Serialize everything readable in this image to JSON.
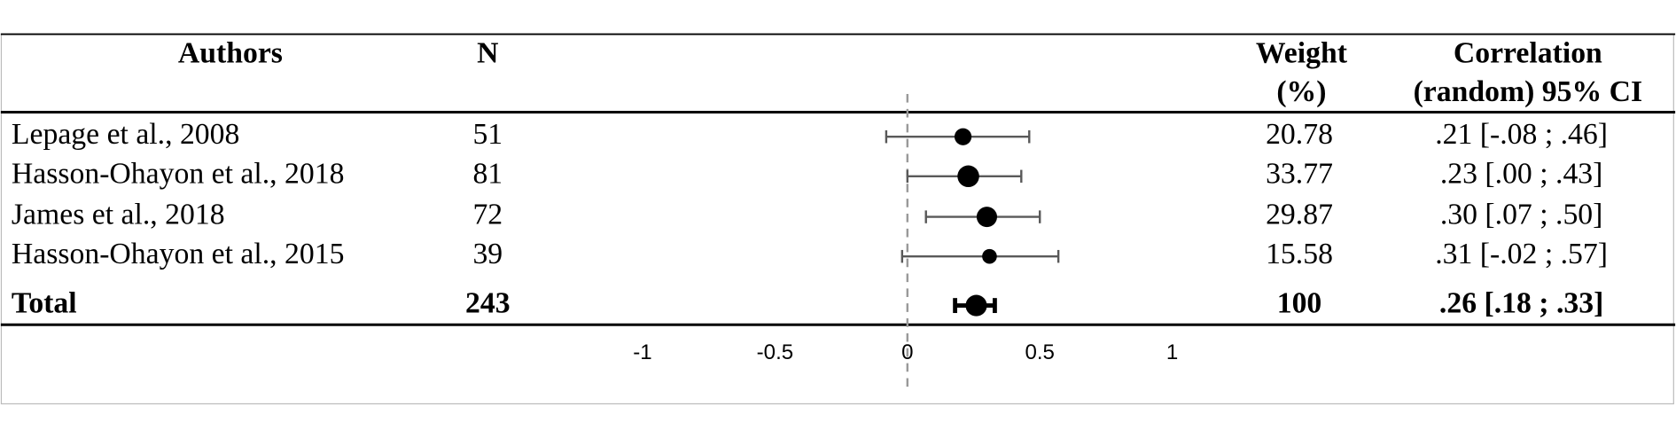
{
  "chart_data": {
    "type": "forest",
    "headers": {
      "authors": "Authors",
      "n": "N",
      "weight": [
        "Weight",
        "(%)"
      ],
      "ci": [
        "Correlation",
        "(random) 95% CI"
      ]
    },
    "studies": [
      {
        "author": "Lepage et al., 2008",
        "n": 51,
        "weight": 20.78,
        "estimate": 0.21,
        "lower": -0.08,
        "upper": 0.46,
        "value_label": ".21 [-.08 ; .46]"
      },
      {
        "author": "Hasson-Ohayon et al., 2018",
        "n": 81,
        "weight": 33.77,
        "estimate": 0.23,
        "lower": 0.0,
        "upper": 0.43,
        "value_label": ".23 [.00 ; .43]"
      },
      {
        "author": "James et al., 2018",
        "n": 72,
        "weight": 29.87,
        "estimate": 0.3,
        "lower": 0.07,
        "upper": 0.5,
        "value_label": ".30 [.07 ; .50]"
      },
      {
        "author": "Hasson-Ohayon et al., 2015",
        "n": 39,
        "weight": 15.58,
        "estimate": 0.31,
        "lower": -0.02,
        "upper": 0.57,
        "value_label": ".31 [-.02 ; .57]"
      }
    ],
    "total": {
      "author": "Total",
      "n": 243,
      "weight": 100,
      "estimate": 0.26,
      "lower": 0.18,
      "upper": 0.33,
      "value_label": ".26 [.18 ; .33]"
    },
    "xlim": [
      -1,
      1
    ],
    "xticks": [
      -1,
      -0.5,
      0,
      0.5,
      1
    ],
    "reference_line": 0,
    "color": "#000000",
    "ci_color": "#595959"
  }
}
